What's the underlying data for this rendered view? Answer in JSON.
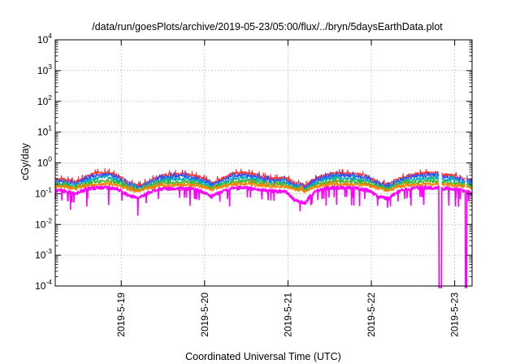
{
  "chart_data": {
    "type": "line",
    "title": "/data/run/goesPlots/archive/2019-05-23/05:00/flux/../bryn/5daysEarthData.plot",
    "xlabel": "Coordinated Universal Time (UTC)",
    "ylabel": "cGy/day",
    "y_scale": "log",
    "ylim": [
      0.0001,
      10000
    ],
    "xlim": [
      "2019-05-18 05:00",
      "2019-05-23 05:00"
    ],
    "y_ticks": [
      {
        "value": 0.0001,
        "base": "10",
        "exp": "-4"
      },
      {
        "value": 0.001,
        "base": "10",
        "exp": "-3"
      },
      {
        "value": 0.01,
        "base": "10",
        "exp": "-2"
      },
      {
        "value": 0.1,
        "base": "10",
        "exp": "-1"
      },
      {
        "value": 1,
        "base": "10",
        "exp": "0"
      },
      {
        "value": 10,
        "base": "10",
        "exp": "1"
      },
      {
        "value": 100,
        "base": "10",
        "exp": "2"
      },
      {
        "value": 1000,
        "base": "10",
        "exp": "3"
      },
      {
        "value": 10000,
        "base": "10",
        "exp": "4"
      }
    ],
    "x_ticks": [
      {
        "label": "2019-5-19",
        "hours": 19
      },
      {
        "label": "2019-5-20",
        "hours": 43
      },
      {
        "label": "2019-5-21",
        "hours": 67
      },
      {
        "label": "2019-5-22",
        "hours": 91
      },
      {
        "label": "2019-5-23",
        "hours": 115
      }
    ],
    "grid": true,
    "legend": "none",
    "gaps_hours": [
      [
        110.4,
        111.3
      ],
      [
        118.0,
        118.5
      ]
    ],
    "series": [
      {
        "color": "#ff3030",
        "values": [
          [
            0,
            0.3
          ],
          [
            3,
            0.28
          ],
          [
            6,
            0.24
          ],
          [
            9,
            0.35
          ],
          [
            12,
            0.47
          ],
          [
            15,
            0.5
          ],
          [
            18,
            0.38
          ],
          [
            21,
            0.22
          ],
          [
            24,
            0.18
          ],
          [
            27,
            0.25
          ],
          [
            30,
            0.36
          ],
          [
            33,
            0.42
          ],
          [
            36,
            0.44
          ],
          [
            39,
            0.41
          ],
          [
            42,
            0.33
          ],
          [
            45,
            0.23
          ],
          [
            48,
            0.3
          ],
          [
            51,
            0.44
          ],
          [
            54,
            0.48
          ],
          [
            57,
            0.43
          ],
          [
            60,
            0.35
          ],
          [
            63,
            0.3
          ],
          [
            66,
            0.33
          ],
          [
            69,
            0.22
          ],
          [
            72,
            0.18
          ],
          [
            75,
            0.3
          ],
          [
            78,
            0.42
          ],
          [
            81,
            0.46
          ],
          [
            84,
            0.45
          ],
          [
            87,
            0.43
          ],
          [
            90,
            0.36
          ],
          [
            93,
            0.23
          ],
          [
            96,
            0.2
          ],
          [
            99,
            0.3
          ],
          [
            102,
            0.4
          ],
          [
            105,
            0.45
          ],
          [
            108,
            0.47
          ],
          [
            110.4,
            0.46
          ],
          [
            111.3,
            0.42
          ],
          [
            114,
            0.4
          ],
          [
            116,
            0.36
          ],
          [
            118,
            0.3
          ],
          [
            118.5,
            0.3
          ],
          [
            120,
            0.26
          ]
        ]
      },
      {
        "color": "#3050ff",
        "values": [
          [
            0,
            0.26
          ],
          [
            3,
            0.24
          ],
          [
            6,
            0.21
          ],
          [
            9,
            0.3
          ],
          [
            12,
            0.4
          ],
          [
            15,
            0.43
          ],
          [
            18,
            0.33
          ],
          [
            21,
            0.19
          ],
          [
            24,
            0.16
          ],
          [
            27,
            0.22
          ],
          [
            30,
            0.31
          ],
          [
            33,
            0.36
          ],
          [
            36,
            0.38
          ],
          [
            39,
            0.35
          ],
          [
            42,
            0.28
          ],
          [
            45,
            0.2
          ],
          [
            48,
            0.26
          ],
          [
            51,
            0.38
          ],
          [
            54,
            0.41
          ],
          [
            57,
            0.37
          ],
          [
            60,
            0.3
          ],
          [
            63,
            0.26
          ],
          [
            66,
            0.28
          ],
          [
            69,
            0.19
          ],
          [
            72,
            0.16
          ],
          [
            75,
            0.26
          ],
          [
            78,
            0.36
          ],
          [
            81,
            0.4
          ],
          [
            84,
            0.39
          ],
          [
            87,
            0.37
          ],
          [
            90,
            0.31
          ],
          [
            93,
            0.2
          ],
          [
            96,
            0.17
          ],
          [
            99,
            0.26
          ],
          [
            102,
            0.34
          ],
          [
            105,
            0.39
          ],
          [
            108,
            0.41
          ],
          [
            110.4,
            0.4
          ],
          [
            111.3,
            0.36
          ],
          [
            114,
            0.34
          ],
          [
            116,
            0.31
          ],
          [
            118,
            0.26
          ],
          [
            118.5,
            0.26
          ],
          [
            120,
            0.22
          ]
        ]
      },
      {
        "color": "#00a8c0",
        "values": [
          [
            0,
            0.22
          ],
          [
            3,
            0.21
          ],
          [
            6,
            0.18
          ],
          [
            9,
            0.25
          ],
          [
            12,
            0.32
          ],
          [
            15,
            0.34
          ],
          [
            18,
            0.27
          ],
          [
            21,
            0.17
          ],
          [
            24,
            0.14
          ],
          [
            27,
            0.19
          ],
          [
            30,
            0.26
          ],
          [
            33,
            0.29
          ],
          [
            36,
            0.3
          ],
          [
            39,
            0.28
          ],
          [
            42,
            0.23
          ],
          [
            45,
            0.17
          ],
          [
            48,
            0.22
          ],
          [
            51,
            0.3
          ],
          [
            54,
            0.33
          ],
          [
            57,
            0.3
          ],
          [
            60,
            0.25
          ],
          [
            63,
            0.22
          ],
          [
            66,
            0.23
          ],
          [
            69,
            0.17
          ],
          [
            72,
            0.14
          ],
          [
            75,
            0.22
          ],
          [
            78,
            0.29
          ],
          [
            81,
            0.32
          ],
          [
            84,
            0.31
          ],
          [
            87,
            0.3
          ],
          [
            90,
            0.26
          ],
          [
            93,
            0.18
          ],
          [
            96,
            0.15
          ],
          [
            99,
            0.22
          ],
          [
            102,
            0.28
          ],
          [
            105,
            0.31
          ],
          [
            108,
            0.32
          ],
          [
            110.4,
            0.32
          ],
          [
            111.3,
            0.29
          ],
          [
            114,
            0.28
          ],
          [
            116,
            0.26
          ],
          [
            118,
            0.22
          ],
          [
            118.5,
            0.22
          ],
          [
            120,
            0.19
          ]
        ]
      },
      {
        "color": "#30c030",
        "values": [
          [
            0,
            0.19
          ],
          [
            3,
            0.18
          ],
          [
            6,
            0.16
          ],
          [
            9,
            0.21
          ],
          [
            12,
            0.25
          ],
          [
            15,
            0.26
          ],
          [
            18,
            0.22
          ],
          [
            21,
            0.15
          ],
          [
            24,
            0.13
          ],
          [
            27,
            0.17
          ],
          [
            30,
            0.21
          ],
          [
            33,
            0.23
          ],
          [
            36,
            0.24
          ],
          [
            39,
            0.23
          ],
          [
            42,
            0.19
          ],
          [
            45,
            0.15
          ],
          [
            48,
            0.19
          ],
          [
            51,
            0.24
          ],
          [
            54,
            0.26
          ],
          [
            57,
            0.24
          ],
          [
            60,
            0.21
          ],
          [
            63,
            0.19
          ],
          [
            66,
            0.2
          ],
          [
            69,
            0.15
          ],
          [
            72,
            0.13
          ],
          [
            75,
            0.19
          ],
          [
            78,
            0.23
          ],
          [
            81,
            0.25
          ],
          [
            84,
            0.25
          ],
          [
            87,
            0.24
          ],
          [
            90,
            0.21
          ],
          [
            93,
            0.16
          ],
          [
            96,
            0.14
          ],
          [
            99,
            0.19
          ],
          [
            102,
            0.23
          ],
          [
            105,
            0.25
          ],
          [
            108,
            0.26
          ],
          [
            110.4,
            0.25
          ],
          [
            111.3,
            0.24
          ],
          [
            114,
            0.23
          ],
          [
            116,
            0.21
          ],
          [
            118,
            0.19
          ],
          [
            118.5,
            0.19
          ],
          [
            120,
            0.17
          ]
        ]
      },
      {
        "color": "#ff8000",
        "values": [
          [
            0,
            0.17
          ],
          [
            3,
            0.16
          ],
          [
            6,
            0.15
          ],
          [
            9,
            0.18
          ],
          [
            12,
            0.2
          ],
          [
            15,
            0.21
          ],
          [
            18,
            0.19
          ],
          [
            21,
            0.14
          ],
          [
            24,
            0.12
          ],
          [
            27,
            0.15
          ],
          [
            30,
            0.18
          ],
          [
            33,
            0.19
          ],
          [
            36,
            0.2
          ],
          [
            39,
            0.19
          ],
          [
            42,
            0.17
          ],
          [
            45,
            0.14
          ],
          [
            48,
            0.17
          ],
          [
            51,
            0.2
          ],
          [
            54,
            0.21
          ],
          [
            57,
            0.2
          ],
          [
            60,
            0.18
          ],
          [
            63,
            0.17
          ],
          [
            66,
            0.17
          ],
          [
            69,
            0.14
          ],
          [
            72,
            0.12
          ],
          [
            75,
            0.17
          ],
          [
            78,
            0.19
          ],
          [
            81,
            0.2
          ],
          [
            84,
            0.2
          ],
          [
            87,
            0.2
          ],
          [
            90,
            0.18
          ],
          [
            93,
            0.15
          ],
          [
            96,
            0.13
          ],
          [
            99,
            0.17
          ],
          [
            102,
            0.19
          ],
          [
            105,
            0.2
          ],
          [
            108,
            0.21
          ],
          [
            110.4,
            0.2
          ],
          [
            111.3,
            0.2
          ],
          [
            114,
            0.19
          ],
          [
            116,
            0.18
          ],
          [
            118,
            0.17
          ],
          [
            118.5,
            0.17
          ],
          [
            120,
            0.15
          ]
        ]
      },
      {
        "color": "#ff00ff",
        "values": [
          [
            0,
            0.13
          ],
          [
            3,
            0.12
          ],
          [
            6,
            0.1
          ],
          [
            9,
            0.14
          ],
          [
            12,
            0.16
          ],
          [
            15,
            0.16
          ],
          [
            18,
            0.14
          ],
          [
            21,
            0.09
          ],
          [
            24,
            0.07
          ],
          [
            27,
            0.11
          ],
          [
            30,
            0.14
          ],
          [
            33,
            0.15
          ],
          [
            36,
            0.15
          ],
          [
            39,
            0.15
          ],
          [
            42,
            0.12
          ],
          [
            45,
            0.08
          ],
          [
            48,
            0.12
          ],
          [
            51,
            0.15
          ],
          [
            54,
            0.16
          ],
          [
            57,
            0.15
          ],
          [
            60,
            0.13
          ],
          [
            63,
            0.12
          ],
          [
            66,
            0.12
          ],
          [
            69,
            0.06
          ],
          [
            72,
            0.05
          ],
          [
            75,
            0.12
          ],
          [
            78,
            0.15
          ],
          [
            81,
            0.16
          ],
          [
            84,
            0.16
          ],
          [
            87,
            0.15
          ],
          [
            90,
            0.13
          ],
          [
            93,
            0.08
          ],
          [
            96,
            0.07
          ],
          [
            99,
            0.12
          ],
          [
            102,
            0.15
          ],
          [
            105,
            0.16
          ],
          [
            108,
            0.16
          ],
          [
            110.4,
            0.16
          ],
          [
            111.3,
            0.15
          ],
          [
            114,
            0.15
          ],
          [
            116,
            0.14
          ],
          [
            118,
            0.12
          ],
          [
            118.5,
            0.12
          ],
          [
            120,
            0.1
          ]
        ]
      }
    ]
  }
}
